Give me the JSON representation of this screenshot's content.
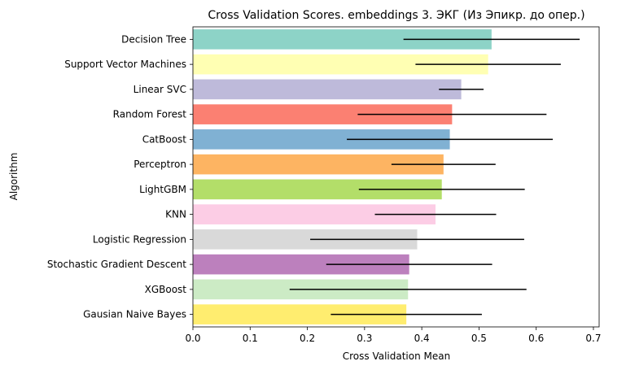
{
  "chart_data": {
    "type": "bar",
    "orientation": "horizontal",
    "title": "Cross Validation Scores. embeddings 3. ЭКГ (Из Эпикр. до опер.)",
    "xlabel": "Cross Validation Mean",
    "ylabel": "Algorithm",
    "xlim": [
      0,
      0.71
    ],
    "xticks": [
      "0.0",
      "0.1",
      "0.2",
      "0.3",
      "0.4",
      "0.5",
      "0.6",
      "0.7"
    ],
    "grid": false,
    "legend": "none",
    "categories": [
      "Decision Tree",
      "Support Vector Machines",
      "Linear SVC",
      "Random Forest",
      "CatBoost",
      "Perceptron",
      "LightGBM",
      "KNN",
      "Logistic Regression",
      "Stochastic Gradient Descent",
      "XGBoost",
      "Gausian Naive Bayes"
    ],
    "values": [
      0.522,
      0.516,
      0.469,
      0.453,
      0.449,
      0.438,
      0.435,
      0.424,
      0.392,
      0.378,
      0.376,
      0.373
    ],
    "errors": [
      0.154,
      0.127,
      0.039,
      0.165,
      0.18,
      0.091,
      0.145,
      0.106,
      0.187,
      0.145,
      0.207,
      0.132
    ],
    "colors": [
      "#8dd3c7",
      "#ffffb3",
      "#bebada",
      "#fb8072",
      "#80b1d3",
      "#fdb462",
      "#b3de69",
      "#fccde5",
      "#d9d9d9",
      "#bc80bd",
      "#ccebc5",
      "#ffed6f"
    ],
    "error_color": "#000000"
  }
}
